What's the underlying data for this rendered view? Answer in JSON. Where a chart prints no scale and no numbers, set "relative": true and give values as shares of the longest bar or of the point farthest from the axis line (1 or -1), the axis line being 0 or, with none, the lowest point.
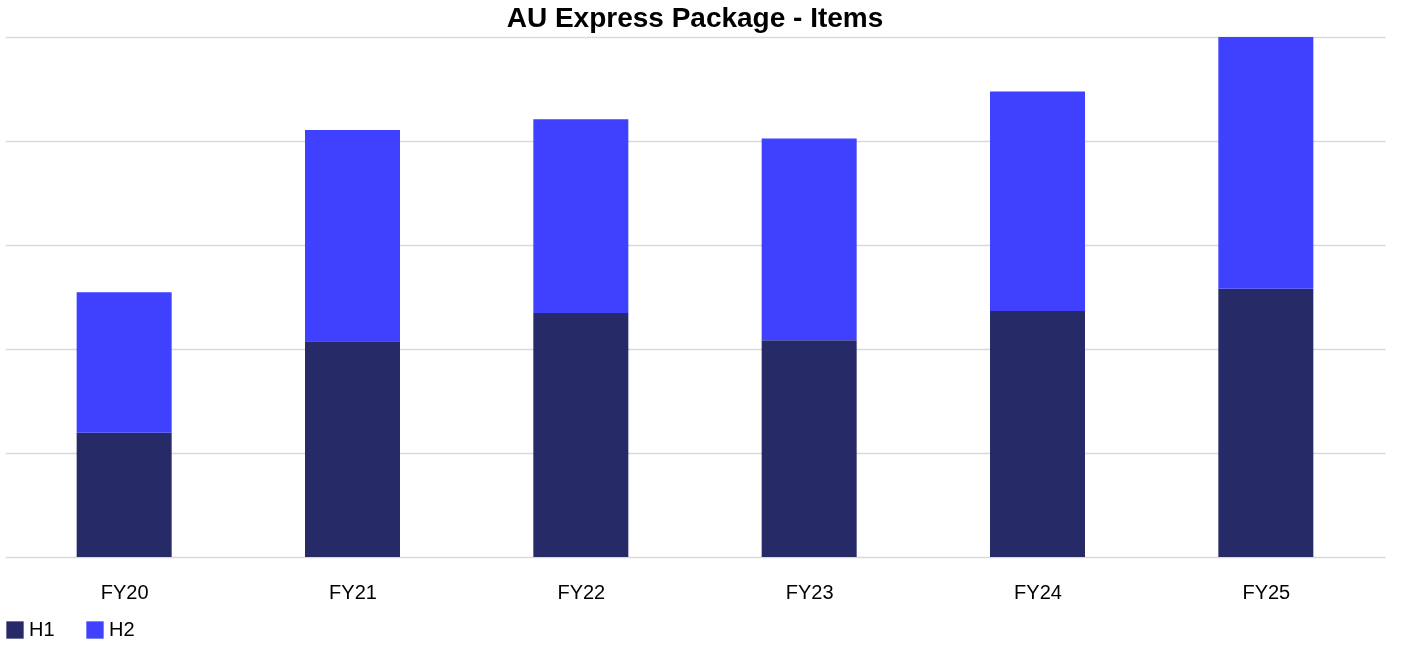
{
  "chart_data": {
    "type": "bar",
    "title": "AU Express Package - Items",
    "stacked": true,
    "relative": true,
    "grid": "y",
    "legend": "bottom",
    "categories": [
      "FY20",
      "FY21",
      "FY22",
      "FY23",
      "FY24",
      "FY25"
    ],
    "series": [
      {
        "name": "H1",
        "color": "#262a66",
        "values": [
          0.239,
          0.415,
          0.469,
          0.417,
          0.473,
          0.516
        ]
      },
      {
        "name": "H2",
        "color": "#4040ff",
        "values": [
          0.27,
          0.406,
          0.373,
          0.388,
          0.422,
          0.484
        ]
      }
    ]
  }
}
